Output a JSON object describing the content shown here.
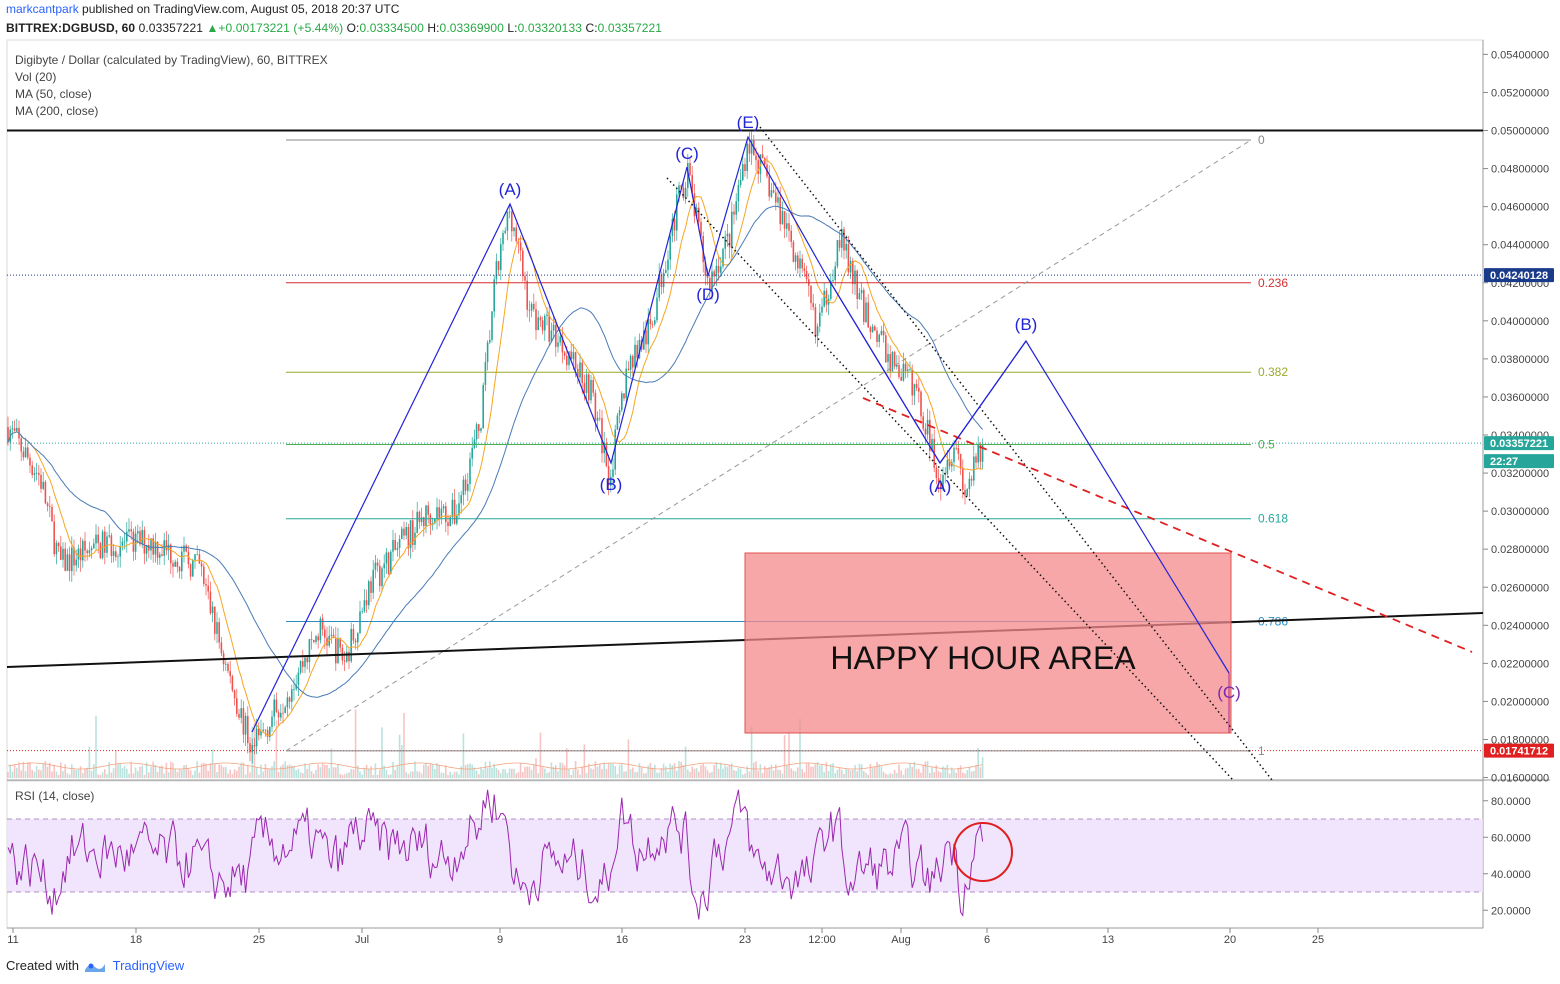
{
  "header": {
    "user": "markcantpark",
    "published": " published on TradingView.com, August 05, 2018 20:37 UTC",
    "symbol": "BITTREX:DGBUSD, 60",
    "last": "0.03357221",
    "change": "+0.00173221 (+5.44%)",
    "open_label": "O:",
    "open": "0.03334500",
    "high_label": "H:",
    "high": "0.03369900",
    "low_label": "L:",
    "low": "0.03320133",
    "close_label": "C:",
    "close": "0.03357221"
  },
  "legend": {
    "title": "Digibyte / Dollar (calculated by TradingView), 60, BITTREX",
    "vol": "Vol (20)",
    "ma50": "MA (50, close)",
    "ma200": "MA (200, close)",
    "rsi": "RSI (14, close)"
  },
  "footer": {
    "created": "Created with",
    "brand": "TradingView"
  },
  "colors": {
    "up": "#26a69a",
    "down": "#ef5350",
    "ma50": "#f5a623",
    "ma200": "#4a7bb7",
    "wave": "#2323d8",
    "rsi": "#9c27b0",
    "zone": "#f48a8a"
  },
  "chart_data": {
    "type": "candlestick",
    "y_axis_ticks": [
      "0.05400000",
      "0.05200000",
      "0.05000000",
      "0.04800000",
      "0.04600000",
      "0.04400000",
      "0.04200000",
      "0.04000000",
      "0.03800000",
      "0.03600000",
      "0.03400000",
      "0.03200000",
      "0.03000000",
      "0.02800000",
      "0.02600000",
      "0.02400000",
      "0.02200000",
      "0.02000000",
      "0.01800000",
      "0.01600000"
    ],
    "y_range": [
      0.0148,
      0.0553
    ],
    "x_axis_ticks": [
      "11",
      "18",
      "25",
      "Jul",
      "9",
      "16",
      "23",
      "12:00",
      "Aug",
      "6",
      "13",
      "20",
      "25"
    ],
    "price_badges": [
      {
        "label": "0.04240128",
        "value": 0.04240128,
        "color": "#1a3a8a"
      },
      {
        "label": "0.03357221",
        "value": 0.03357221,
        "color": "#26a69a"
      },
      {
        "label": "22:27",
        "value": 0.0322,
        "color": "#26a69a"
      },
      {
        "label": "0.01741712",
        "value": 0.01741712,
        "color": "#e02020"
      }
    ],
    "fib_levels": [
      {
        "label": "0",
        "value": 0.0495
      },
      {
        "label": "0.236",
        "value": 0.042
      },
      {
        "label": "0.382",
        "value": 0.0373
      },
      {
        "label": "0.5",
        "value": 0.0335
      },
      {
        "label": "0.618",
        "value": 0.0296
      },
      {
        "label": "0.786",
        "value": 0.0242
      },
      {
        "label": "1",
        "value": 0.0174
      }
    ],
    "wave_labels": [
      {
        "label": "(A)",
        "value": 0.046
      },
      {
        "label": "(B)",
        "value": 0.0318
      },
      {
        "label": "(C)",
        "value": 0.048
      },
      {
        "label": "(D)",
        "value": 0.0419
      },
      {
        "label": "(E)",
        "value": 0.0495
      },
      {
        "label": "(A)",
        "value": 0.0318
      },
      {
        "label": "(B)",
        "value": 0.0386
      },
      {
        "label": "(C)",
        "value": 0.0204
      }
    ],
    "zone_label": "HAPPY HOUR AREA",
    "rsi_axis_ticks": [
      "80.0000",
      "60.0000",
      "40.0000",
      "20.0000"
    ],
    "rsi_range": [
      12,
      88
    ],
    "rsi_band": [
      30,
      70
    ]
  }
}
